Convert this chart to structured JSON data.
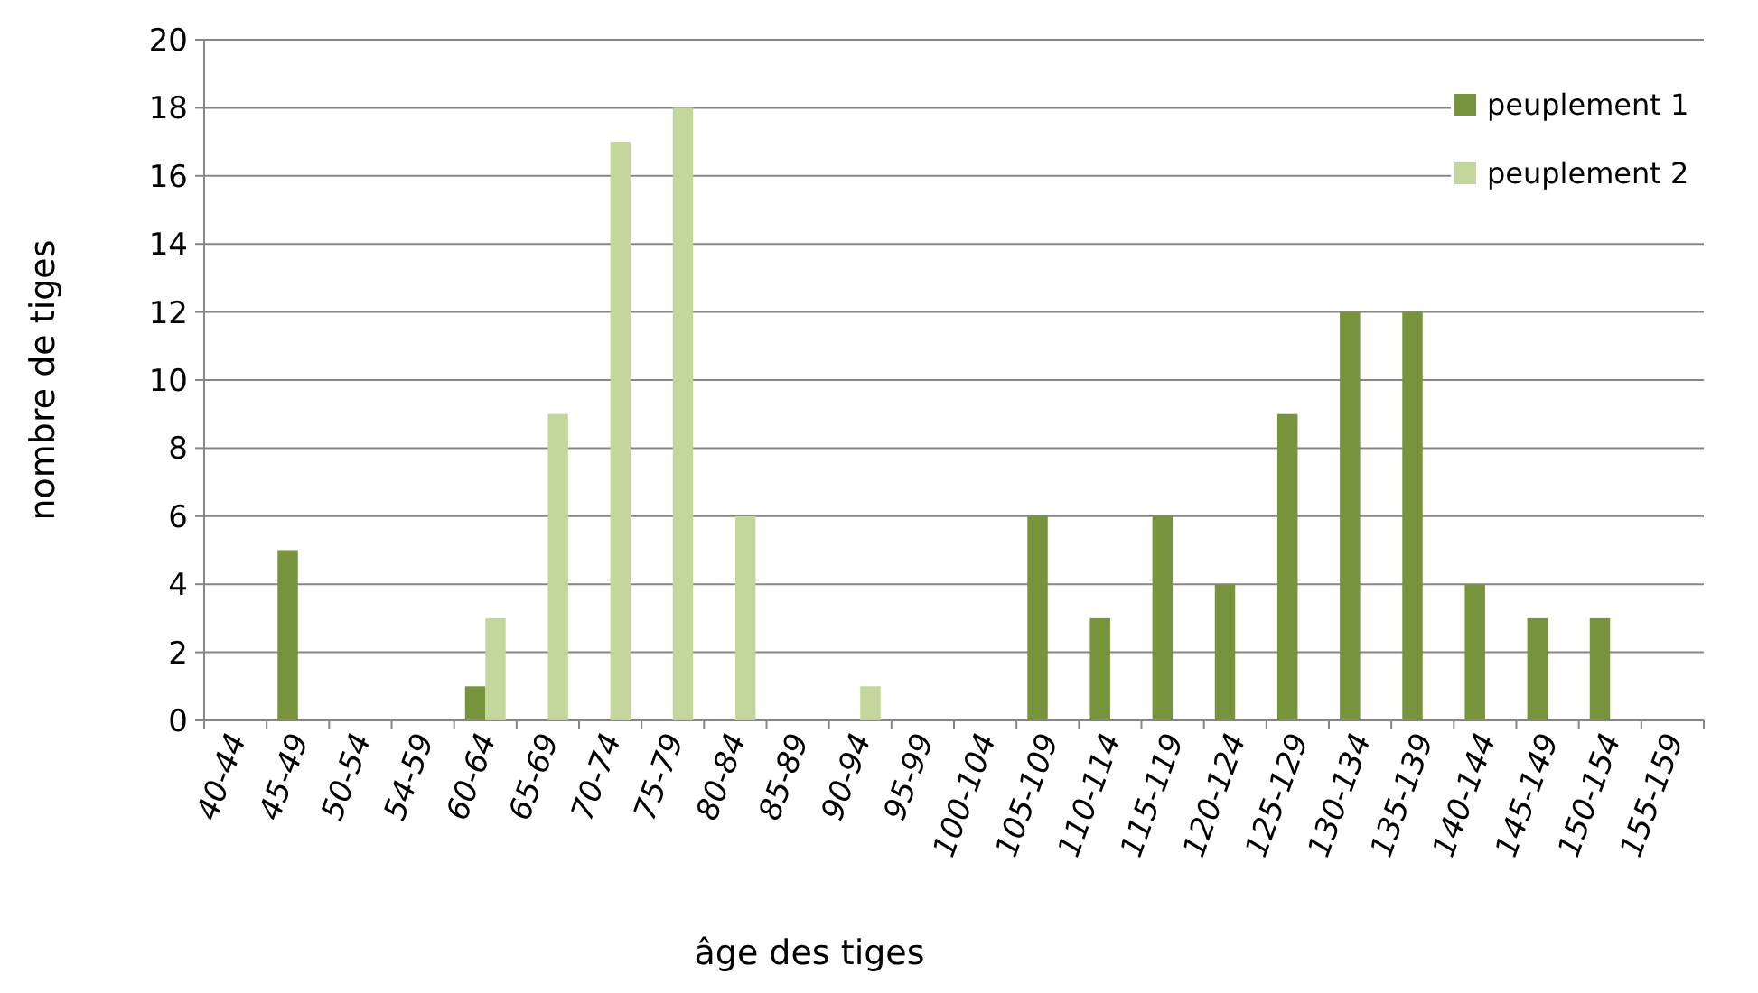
{
  "chart_data": {
    "type": "bar",
    "xlabel": "âge des tiges",
    "ylabel": "nombre de tiges",
    "categories": [
      "40-44",
      "45-49",
      "50-54",
      "54-59",
      "60-64",
      "65-69",
      "70-74",
      "75-79",
      "80-84",
      "85-89",
      "90-94",
      "95-99",
      "100-104",
      "105-109",
      "110-114",
      "115-119",
      "120-124",
      "125-129",
      "130-134",
      "135-139",
      "140-144",
      "145-149",
      "150-154",
      "155-159"
    ],
    "series": [
      {
        "name": "peuplement 1",
        "color": "#77933c",
        "values": [
          null,
          5,
          null,
          null,
          1,
          null,
          null,
          null,
          null,
          null,
          null,
          null,
          null,
          6,
          3,
          6,
          4,
          9,
          12,
          12,
          4,
          3,
          3,
          null
        ]
      },
      {
        "name": "peuplement 2",
        "color": "#c3d69b",
        "values": [
          null,
          null,
          null,
          null,
          3,
          9,
          17,
          18,
          6,
          null,
          1,
          null,
          null,
          null,
          null,
          null,
          null,
          null,
          null,
          null,
          null,
          null,
          null,
          null
        ]
      }
    ],
    "ylim": [
      0,
      20
    ],
    "yticks": [
      0,
      2,
      4,
      6,
      8,
      10,
      12,
      14,
      16,
      18,
      20
    ],
    "grid": "y",
    "legend": "top right"
  }
}
